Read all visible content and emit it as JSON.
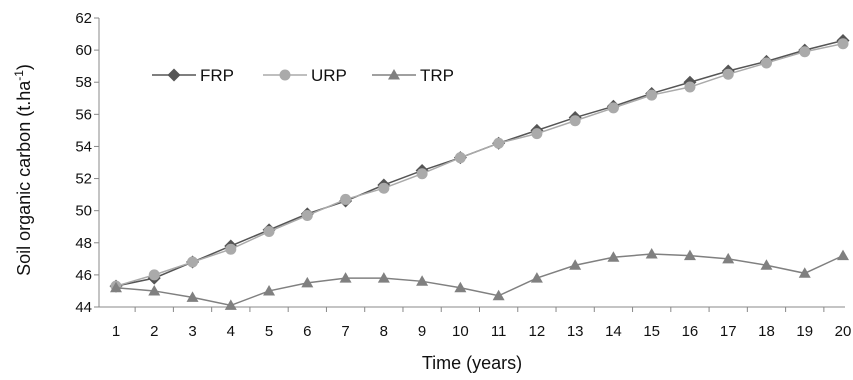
{
  "chart_data": {
    "type": "line",
    "xlabel": "Time (years)",
    "ylabel_main": "Soil organic carbon (t.ha",
    "ylabel_sup": "-1",
    "ylabel_close": ")",
    "ylim": [
      44,
      62
    ],
    "yticks": [
      44,
      46,
      48,
      50,
      52,
      54,
      56,
      58,
      60,
      62
    ],
    "x": [
      1,
      2,
      3,
      4,
      5,
      6,
      7,
      8,
      9,
      10,
      11,
      12,
      13,
      14,
      15,
      16,
      17,
      18,
      19,
      20
    ],
    "grid": false,
    "legend_position": "top-left",
    "series": [
      {
        "name": "FRP",
        "color": "#555555",
        "marker": "diamond",
        "values": [
          45.3,
          45.8,
          46.8,
          47.8,
          48.8,
          49.8,
          50.6,
          51.6,
          52.5,
          53.3,
          54.2,
          55.0,
          55.8,
          56.5,
          57.3,
          58.0,
          58.7,
          59.3,
          60.0,
          60.6
        ]
      },
      {
        "name": "URP",
        "color": "#aaaaaa",
        "marker": "circle",
        "values": [
          45.3,
          46.0,
          46.8,
          47.6,
          48.7,
          49.7,
          50.7,
          51.4,
          52.3,
          53.3,
          54.2,
          54.8,
          55.6,
          56.4,
          57.2,
          57.7,
          58.5,
          59.2,
          59.9,
          60.4
        ]
      },
      {
        "name": "TRP",
        "color": "#808080",
        "marker": "triangle",
        "values": [
          45.2,
          45.0,
          44.6,
          44.1,
          45.0,
          45.5,
          45.8,
          45.8,
          45.6,
          45.2,
          44.7,
          45.8,
          46.6,
          47.1,
          47.3,
          47.2,
          47.0,
          46.6,
          46.1,
          47.2
        ]
      }
    ]
  }
}
